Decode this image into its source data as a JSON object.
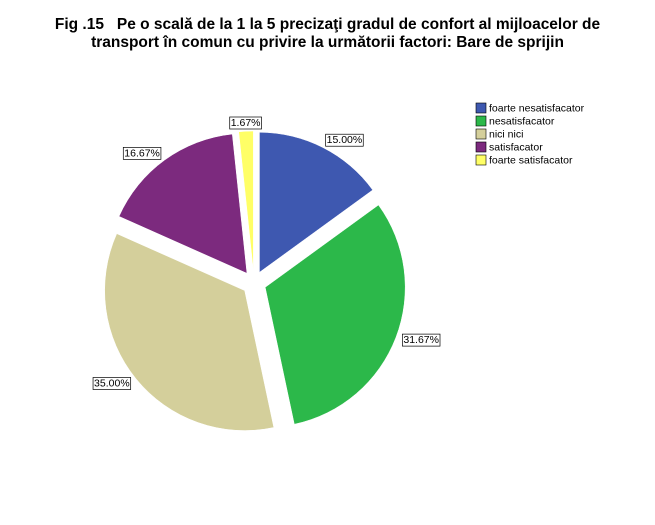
{
  "chart_data": {
    "type": "pie",
    "title": "Fig .15   Pe o scală de la 1 la 5 precizaţi gradul de confort al mijloacelor de transport în comun cu privire la următorii factori: Bare de sprijin",
    "categories": [
      "foarte nesatisfacator",
      "nesatisfacator",
      "nici nici",
      "satisfacator",
      "foarte satisfacator"
    ],
    "values": [
      15.0,
      31.67,
      35.0,
      16.67,
      1.67
    ],
    "value_labels": [
      "15.00%",
      "31.67%",
      "35.00%",
      "16.67%",
      "1.67%"
    ],
    "colors": [
      "#3e58b0",
      "#2cb84a",
      "#d4cf9b",
      "#7c2a7e",
      "#ffff66"
    ],
    "legend": "top-right"
  }
}
